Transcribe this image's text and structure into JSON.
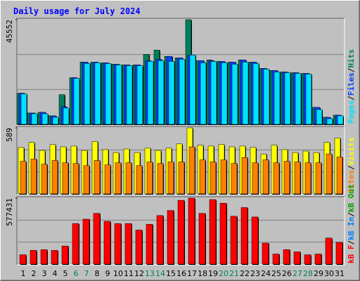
{
  "chart_data": {
    "type": "bar",
    "title": "Daily usage for July 2024",
    "categories": [
      "1",
      "2",
      "3",
      "4",
      "5",
      "6",
      "7",
      "8",
      "9",
      "10",
      "11",
      "12",
      "13",
      "14",
      "15",
      "16",
      "17",
      "18",
      "19",
      "20",
      "21",
      "22",
      "23",
      "24",
      "25",
      "26",
      "27",
      "28",
      "29",
      "30",
      "31"
    ],
    "category_colors": [
      "#000000",
      "#000000",
      "#000000",
      "#000000",
      "#000000",
      "#00805c",
      "#00805c",
      "#000000",
      "#000000",
      "#000000",
      "#000000",
      "#000000",
      "#00805c",
      "#00805c",
      "#000000",
      "#000000",
      "#000000",
      "#000000",
      "#000000",
      "#00805c",
      "#00805c",
      "#000000",
      "#000000",
      "#000000",
      "#000000",
      "#000000",
      "#00805c",
      "#00805c",
      "#000000",
      "#000000",
      "#000000"
    ],
    "legend_separator": "/",
    "panels": [
      {
        "ylim": [
          0,
          45552
        ],
        "yticks": [
          45552
        ],
        "series": [
          {
            "name": "Hits",
            "color": "#00805c",
            "values": [
              13550,
              4930,
              5240,
              3700,
              12940,
              20330,
              27100,
              27100,
              26800,
              26180,
              25870,
              25870,
              30490,
              32340,
              29570,
              28950,
              45552,
              27720,
              28030,
              27410,
              27100,
              28030,
              27100,
              24330,
              23410,
              22790,
              22480,
              22180,
              7390,
              3080,
              4000
            ]
          },
          {
            "name": "Files",
            "color": "#0040ff",
            "values": [
              13550,
              4930,
              5240,
              3700,
              7700,
              20330,
              27100,
              27100,
              26800,
              26180,
              25870,
              25870,
              27720,
              28340,
              29570,
              28950,
              30180,
              27720,
              27720,
              27410,
              27100,
              28030,
              27100,
              24330,
              23410,
              22790,
              22480,
              22180,
              7390,
              3080,
              4000
            ]
          },
          {
            "name": "Pages",
            "color": "#00e0ff",
            "values": [
              13240,
              4620,
              4620,
              3080,
              7080,
              20020,
              26490,
              26800,
              26490,
              25870,
              25560,
              25560,
              27410,
              27720,
              27410,
              28340,
              30180,
              26800,
              27410,
              26800,
              26180,
              27100,
              26490,
              24020,
              22790,
              22480,
              22180,
              21870,
              6470,
              2460,
              3700
            ]
          }
        ]
      },
      {
        "ylim": [
          0,
          589
        ],
        "yticks": [
          589
        ],
        "series": [
          {
            "name": "Visits",
            "color": "#ffff00",
            "values": [
              414,
              459,
              388,
              440,
              420,
              427,
              388,
              466,
              395,
              369,
              401,
              369,
              408,
              388,
              408,
              446,
              589,
              434,
              427,
              440,
              420,
              427,
              414,
              356,
              434,
              395,
              369,
              382,
              369,
              459,
              498
            ]
          },
          {
            "name": "Sites",
            "color": "#ff8000",
            "values": [
              291,
              311,
              265,
              298,
              278,
              272,
              252,
              298,
              259,
              278,
              278,
              252,
              285,
              272,
              285,
              285,
              420,
              304,
              285,
              304,
              272,
              324,
              278,
              304,
              278,
              291,
              285,
              278,
              278,
              356,
              330
            ]
          }
        ]
      },
      {
        "ylim": [
          0,
          577431
        ],
        "yticks": [
          577431
        ],
        "series": [
          {
            "name": "kB F",
            "color": "#ff0000",
            "values": [
              82500,
              120500,
              126900,
              120500,
              158600,
              355300,
              393400,
              444200,
              374400,
              355300,
              355300,
              298200,
              349000,
              425100,
              469500,
              558400,
              577431,
              444200,
              564700,
              533000,
              418800,
              494900,
              412400,
              184000,
              88800,
              126900,
              107900,
              82500,
              88800,
              228400,
              190400
            ]
          },
          {
            "name": "kB In",
            "color": "#0080ff"
          },
          {
            "name": "kB Out",
            "color": "#00a000"
          }
        ]
      }
    ]
  }
}
